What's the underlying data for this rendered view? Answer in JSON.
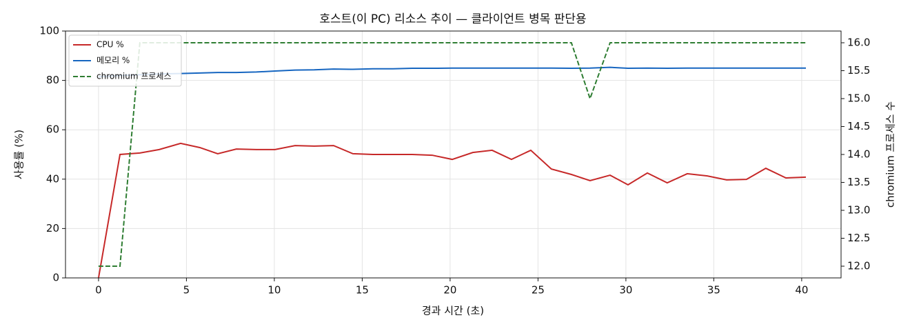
{
  "chart_data": {
    "type": "line",
    "title": "호스트(이 PC) 리소스 추이 — 클라이언트 병목 판단용",
    "x_label": "경과 시간 (초)",
    "y_label": "사용률 (%)",
    "y2_label": "chromium 프로세스 수",
    "x": [
      0,
      1.22,
      2.35,
      3.45,
      4.67,
      5.76,
      6.78,
      7.84,
      8.98,
      10.04,
      11.18,
      12.27,
      13.37,
      14.47,
      15.61,
      16.75,
      17.84,
      18.98,
      20.12,
      21.29,
      22.39,
      23.49,
      24.59,
      25.76,
      26.9,
      27.96,
      29.1,
      30.12,
      31.22,
      32.35,
      33.49,
      34.63,
      35.73,
      36.86,
      37.96,
      39.1,
      40.24
    ],
    "series": [
      {
        "name": "CPU %",
        "color": "#c62828",
        "linestyle": "solid",
        "values": [
          0,
          50.0,
          50.6,
          52.0,
          54.5,
          52.8,
          50.3,
          52.2,
          52.0,
          52.0,
          53.6,
          53.4,
          53.6,
          50.3,
          50.0,
          50.0,
          50.0,
          49.7,
          48.0,
          50.8,
          51.7,
          48.0,
          51.7,
          44.1,
          41.9,
          39.4,
          41.6,
          37.7,
          42.5,
          38.5,
          42.2,
          41.3,
          39.7,
          39.9,
          44.4,
          40.5,
          40.8
        ]
      },
      {
        "name": "메모리 %",
        "color": "#1565c0",
        "linestyle": "solid",
        "values": [
          81.5,
          82.0,
          82.3,
          82.6,
          82.8,
          83.0,
          83.2,
          83.2,
          83.4,
          83.8,
          84.2,
          84.3,
          84.6,
          84.5,
          84.7,
          84.7,
          84.9,
          84.9,
          85.0,
          85.0,
          85.0,
          85.0,
          85.0,
          85.0,
          84.9,
          85.0,
          85.3,
          84.9,
          85.0,
          84.9,
          85.0,
          85.0,
          85.0,
          85.0,
          85.0,
          85.0,
          85.0
        ]
      },
      {
        "name": "chromium 프로세스",
        "color": "#2e7d32",
        "linestyle": "dashed",
        "axis": "y2",
        "values": [
          12,
          12,
          16,
          16,
          16,
          16,
          16,
          16,
          16,
          16,
          16,
          16,
          16,
          16,
          16,
          16,
          16,
          16,
          16,
          16,
          16,
          16,
          16,
          16,
          16,
          15,
          16,
          16,
          16,
          16,
          16,
          16,
          16,
          16,
          16,
          16,
          16
        ]
      }
    ],
    "xlim": [
      -1.88,
      42.24
    ],
    "xticks": [
      0,
      5,
      10,
      15,
      20,
      25,
      30,
      35,
      40
    ],
    "ylim": [
      0,
      100
    ],
    "yticks": [
      0,
      20,
      40,
      60,
      80,
      100
    ],
    "y2lim": [
      11.79,
      16.21
    ],
    "y2ticks": [
      {
        "value": 12,
        "label": "12.0"
      },
      {
        "value": 12.5,
        "label": "12.5"
      },
      {
        "value": 13,
        "label": "13.0"
      },
      {
        "value": 13.5,
        "label": "13.5"
      },
      {
        "value": 14,
        "label": "14.0"
      },
      {
        "value": 14.5,
        "label": "14.5"
      },
      {
        "value": 15,
        "label": "15.0"
      },
      {
        "value": 15.5,
        "label": "15.5"
      },
      {
        "value": 16,
        "label": "16.0"
      }
    ],
    "grid": true,
    "legend": "upper-left"
  }
}
